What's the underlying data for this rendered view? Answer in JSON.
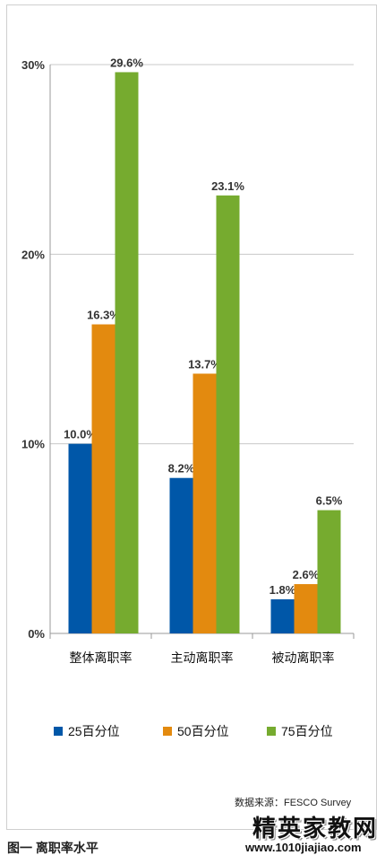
{
  "chart_data": {
    "type": "bar",
    "categories": [
      "整体离职率",
      "主动离职率",
      "被动离职率"
    ],
    "series": [
      {
        "name": "25百分位",
        "values": [
          10.0,
          8.2,
          1.8
        ],
        "labels": [
          "10.0%",
          "8.2%",
          "1.8%"
        ]
      },
      {
        "name": "50百分位",
        "values": [
          16.3,
          13.7,
          2.6
        ],
        "labels": [
          "16.3%",
          "13.7%",
          "2.6%"
        ]
      },
      {
        "name": "75百分位",
        "values": [
          29.6,
          23.1,
          6.5
        ],
        "labels": [
          "29.6%",
          "23.1%",
          "6.5%"
        ]
      }
    ],
    "ylim": [
      0,
      30
    ],
    "yticks": [
      {
        "value": 0,
        "label": "0%"
      },
      {
        "value": 10,
        "label": "10%"
      },
      {
        "value": 20,
        "label": "20%"
      },
      {
        "value": 30,
        "label": "30%"
      }
    ],
    "grid": true,
    "legend_position": "bottom",
    "colors": [
      "#0057a8",
      "#e38a0f",
      "#76ab2f"
    ]
  },
  "source_note": "数据来源：FESCO Survey",
  "caption": "图一  离职率水平",
  "watermark": {
    "main": "精英家教网",
    "url": "www.1010jiajiao.com"
  }
}
